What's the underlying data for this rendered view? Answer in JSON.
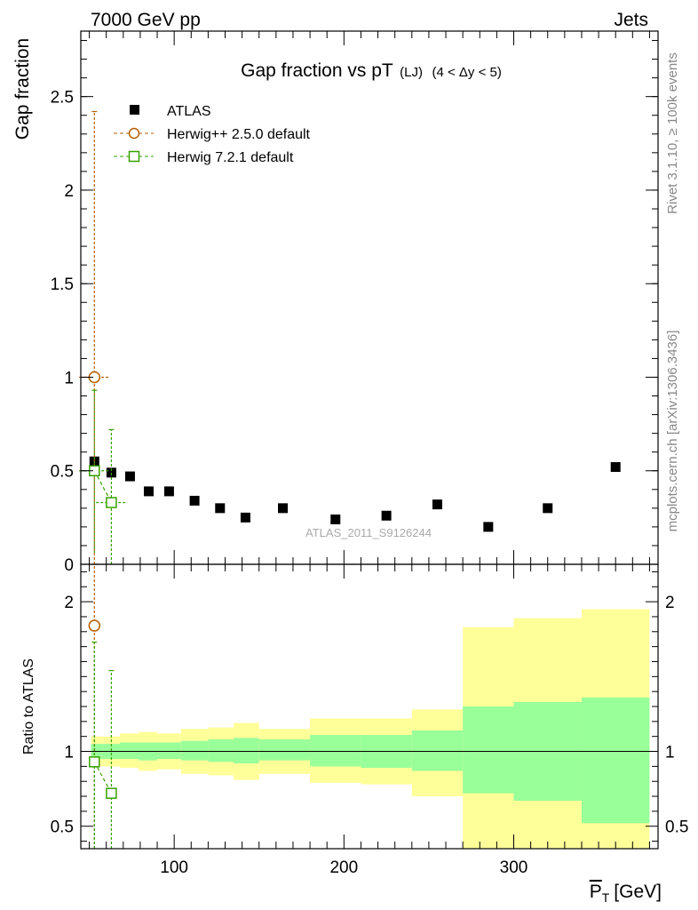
{
  "header": {
    "left": "7000 GeV pp",
    "right": "Jets"
  },
  "side_labels": {
    "top": "Rivet 3.1.10, ≥ 100k events",
    "bottom": "mcplots.cern.ch [arXiv:1306.3436]"
  },
  "watermark": "ATLAS_2011_S9126244",
  "colors": {
    "data": "#000000",
    "herwigpp": "#b45f06",
    "herwig7": "#38a000",
    "band_inner": "#99ff99",
    "band_outer": "#ffff99"
  },
  "chart_data": [
    {
      "type": "scatter",
      "title_main": "Gap fraction vs pT",
      "title_sub": "(LJ)",
      "title_range": "(4 < Δy < 5)",
      "ylabel": "Gap fraction",
      "xlim": [
        45,
        385
      ],
      "ylim": [
        0,
        2.85
      ],
      "yticks": [
        0,
        0.5,
        1,
        1.5,
        2,
        2.5
      ],
      "ytick_labels": [
        "0",
        "0.5",
        "1",
        "1.5",
        "2",
        "2.5"
      ],
      "legend": [
        "ATLAS",
        "Herwig++ 2.5.0 default",
        "Herwig 7.2.1 default"
      ],
      "series": [
        {
          "name": "ATLAS",
          "x": [
            53,
            63,
            74,
            85,
            97,
            112,
            127,
            142,
            164,
            195,
            225,
            255,
            285,
            320,
            360
          ],
          "y": [
            0.55,
            0.49,
            0.47,
            0.39,
            0.39,
            0.34,
            0.3,
            0.25,
            0.3,
            0.24,
            0.26,
            0.32,
            0.2,
            0.3,
            0.52
          ]
        },
        {
          "name": "Herwig++ 2.5.0 default",
          "x": [
            53
          ],
          "y": [
            1.0
          ],
          "yerr_low": [
            1.0
          ],
          "yerr_high": [
            1.42
          ],
          "xerr": [
            5
          ]
        },
        {
          "name": "Herwig 7.2.1 default",
          "x": [
            53,
            63
          ],
          "y": [
            0.5,
            0.33
          ],
          "yerr_low": [
            0.44,
            0.33
          ],
          "yerr_high": [
            0.43,
            0.39
          ],
          "xerr": [
            5,
            5
          ]
        }
      ]
    },
    {
      "type": "line",
      "ylabel": "Ratio to ATLAS",
      "xlabel": "P̅T [GeV]",
      "xlabel_main": "P",
      "xlabel_sub": "T",
      "xlabel_unit": "[GeV]",
      "xlim": [
        45,
        385
      ],
      "ylim": [
        0.35,
        2.25
      ],
      "yticks": [
        0.5,
        1,
        2
      ],
      "ytick_labels": [
        "0.5",
        "1",
        "2"
      ],
      "xticks": [
        100,
        200,
        300
      ],
      "xtick_labels": [
        "100",
        "200",
        "300"
      ],
      "bands": {
        "edges": [
          51,
          58,
          68,
          79,
          90,
          104,
          120,
          135,
          150,
          180,
          210,
          240,
          270,
          300,
          340,
          380
        ],
        "inner_low": [
          0.95,
          0.95,
          0.95,
          0.94,
          0.95,
          0.94,
          0.93,
          0.92,
          0.94,
          0.9,
          0.89,
          0.87,
          0.72,
          0.67,
          0.52
        ],
        "inner_high": [
          1.05,
          1.05,
          1.06,
          1.06,
          1.06,
          1.07,
          1.08,
          1.09,
          1.08,
          1.11,
          1.11,
          1.14,
          1.3,
          1.33,
          1.36
        ],
        "outer_low": [
          0.9,
          0.9,
          0.89,
          0.87,
          0.88,
          0.85,
          0.84,
          0.81,
          0.85,
          0.79,
          0.78,
          0.7,
          0.35,
          0.35,
          0.35
        ],
        "outer_high": [
          1.1,
          1.1,
          1.12,
          1.13,
          1.12,
          1.15,
          1.16,
          1.19,
          1.15,
          1.22,
          1.22,
          1.28,
          1.83,
          1.89,
          1.95
        ]
      },
      "series": [
        {
          "name": "Herwig++ 2.5.0 default",
          "x": [
            53
          ],
          "y": [
            1.84
          ],
          "yerr_low": [
            1.84
          ],
          "yerr_high": [
            0.6
          ]
        },
        {
          "name": "Herwig 7.2.1 default",
          "x": [
            53,
            63
          ],
          "y": [
            0.93,
            0.72
          ],
          "yerr_low": [
            0.93,
            0.72
          ],
          "yerr_high": [
            0.8,
            0.82
          ]
        }
      ]
    }
  ]
}
